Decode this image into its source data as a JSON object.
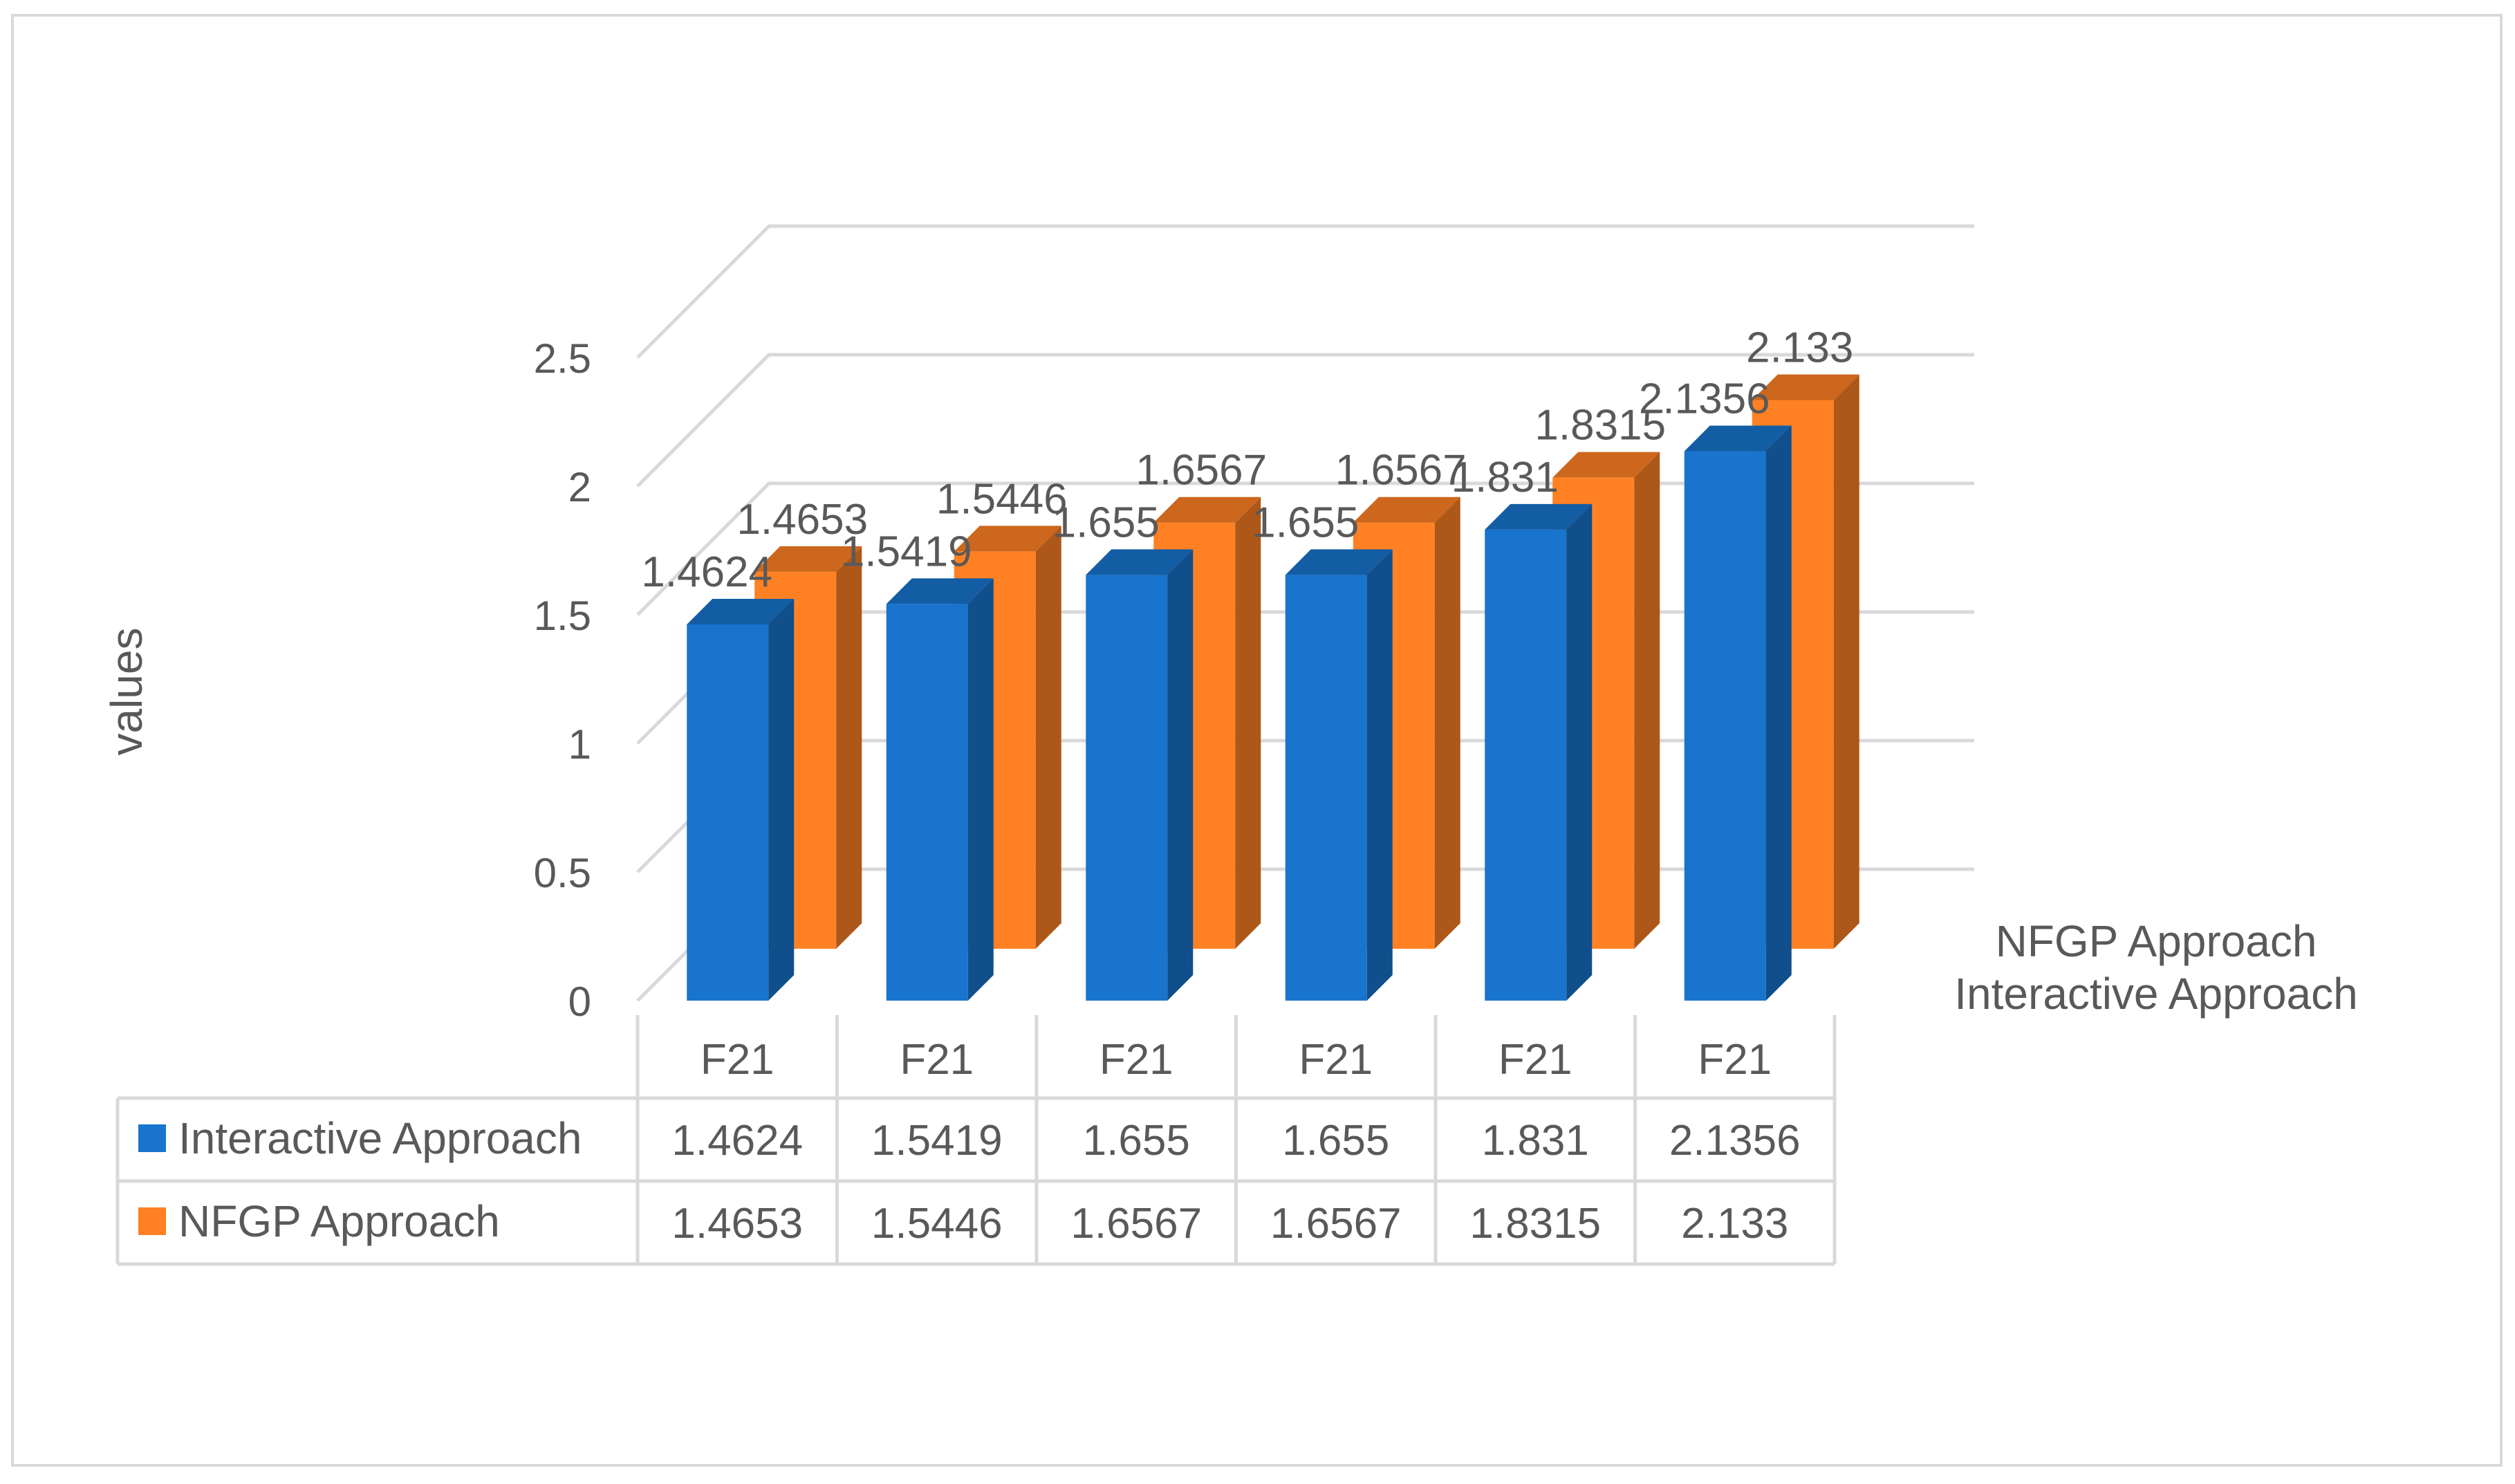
{
  "chart_data": {
    "type": "bar",
    "title": "",
    "xlabel": "",
    "ylabel": "values",
    "ylim": [
      0,
      2.5
    ],
    "yticks": [
      "0",
      "0.5",
      "1",
      "1.5",
      "2",
      "2.5"
    ],
    "categories": [
      "F21",
      "F21",
      "F21",
      "F21",
      "F21",
      "F21"
    ],
    "series": [
      {
        "name": "Interactive Approach",
        "color": "#1874CD",
        "values": [
          1.4624,
          1.5419,
          1.655,
          1.655,
          1.831,
          2.1356
        ],
        "labels": [
          "1.4624",
          "1.5419",
          "1.655",
          "1.655",
          "1.831",
          "2.1356"
        ]
      },
      {
        "name": "NFGP Approach",
        "color": "#FF8124",
        "values": [
          1.4653,
          1.5446,
          1.6567,
          1.6567,
          1.8315,
          2.133
        ],
        "labels": [
          "1.4653",
          "1.5446",
          "1.6567",
          "1.6567",
          "1.8315",
          "2.133"
        ]
      }
    ],
    "depth_axis_labels": [
      "NFGP Approach",
      "Interactive Approach"
    ],
    "grid": true,
    "legend": "data-table"
  }
}
